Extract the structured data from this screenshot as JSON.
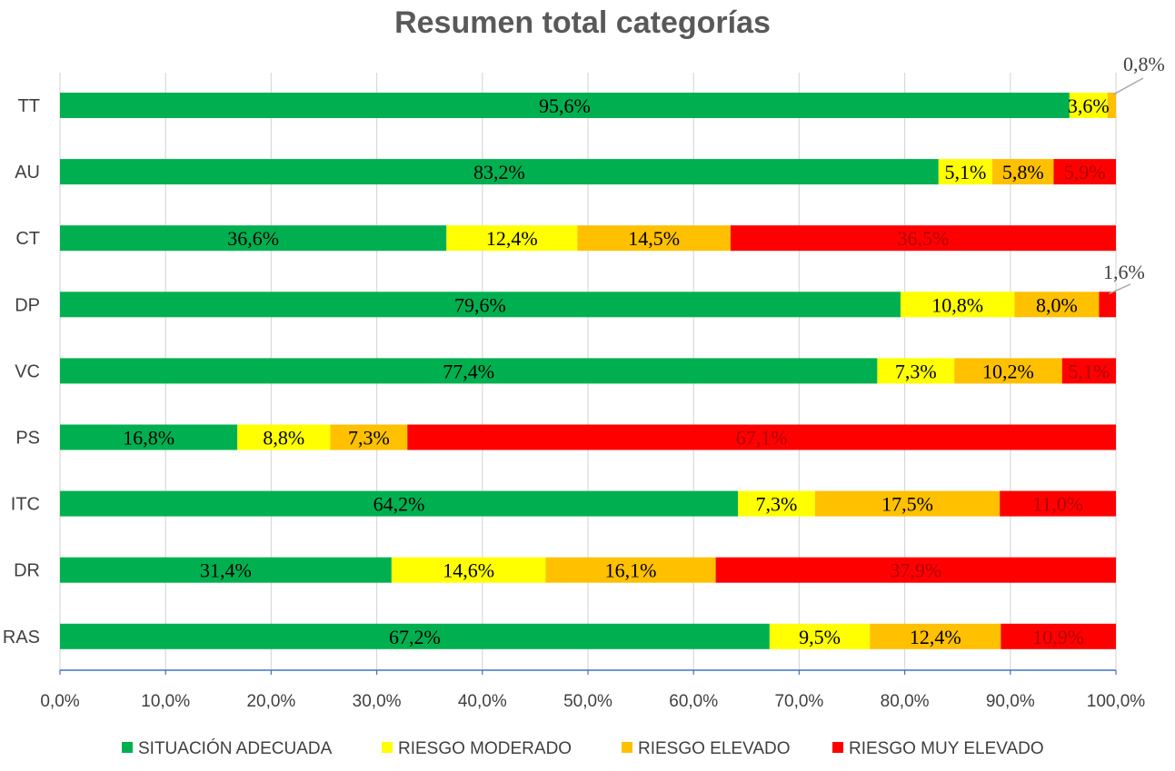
{
  "chart_data": {
    "type": "bar",
    "orientation": "horizontal",
    "stacked": true,
    "title": "Resumen total categorías",
    "categories": [
      "TT",
      "AU",
      "CT",
      "DP",
      "VC",
      "PS",
      "ITC",
      "DR",
      "RAS"
    ],
    "series": [
      {
        "name": "SITUACIÓN ADECUADA",
        "color": "#00B050",
        "values": [
          95.6,
          83.2,
          36.6,
          79.6,
          77.4,
          16.8,
          64.2,
          31.4,
          67.2
        ],
        "labels": [
          "95,6%",
          "83,2%",
          "36,6%",
          "79,6%",
          "77,4%",
          "16,8%",
          "64,2%",
          "31,4%",
          "67,2%"
        ]
      },
      {
        "name": "RIESGO MODERADO",
        "color": "#FFFF00",
        "values": [
          3.6,
          5.1,
          12.4,
          10.8,
          7.3,
          8.8,
          7.3,
          14.6,
          9.5
        ],
        "labels": [
          "3,6%",
          "5,1%",
          "12,4%",
          "10,8%",
          "7,3%",
          "8,8%",
          "7,3%",
          "14,6%",
          "9,5%"
        ]
      },
      {
        "name": "RIESGO ELEVADO",
        "color": "#FFC000",
        "values": [
          0.8,
          5.8,
          14.5,
          8.0,
          10.2,
          7.3,
          17.5,
          16.1,
          12.4
        ],
        "labels": [
          "0,8%",
          "5,8%",
          "14,5%",
          "8,0%",
          "10,2%",
          "7,3%",
          "17,5%",
          "16,1%",
          "12,4%"
        ]
      },
      {
        "name": "RIESGO MUY ELEVADO",
        "color": "#FF0000",
        "values": [
          0,
          5.9,
          36.5,
          1.6,
          5.1,
          67.1,
          11.0,
          37.9,
          10.9
        ],
        "labels": [
          "",
          "5,9%",
          "36,5%",
          "1,6%",
          "5,1%",
          "67,1%",
          "11,0%",
          "37,9%",
          "10,9%"
        ]
      }
    ],
    "xlim": [
      0,
      100
    ],
    "xticks": [
      "0,0%",
      "10,0%",
      "20,0%",
      "30,0%",
      "40,0%",
      "50,0%",
      "60,0%",
      "70,0%",
      "80,0%",
      "90,0%",
      "100,0%"
    ],
    "grid": true,
    "legend": "bottom"
  }
}
